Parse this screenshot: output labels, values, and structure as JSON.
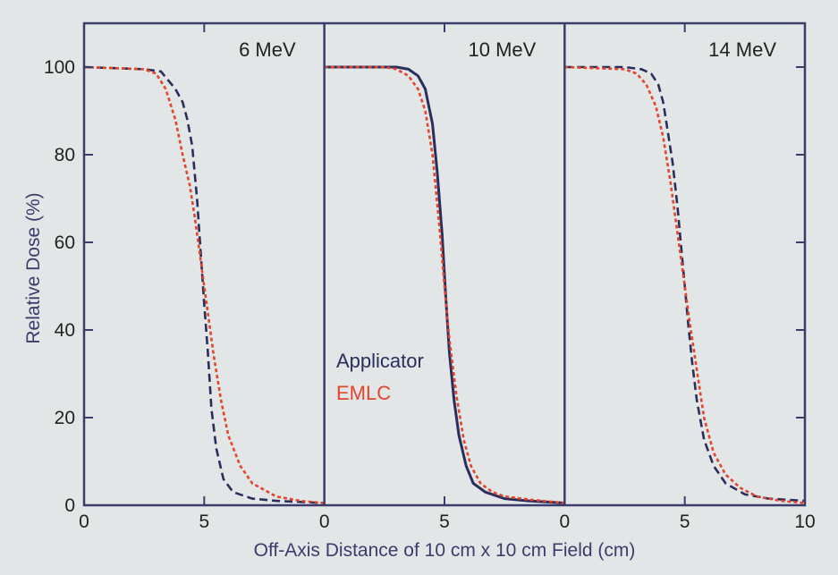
{
  "chart_data": {
    "type": "line",
    "xlabel": "Off-Axis Distance of 10 cm x 10 cm Field (cm)",
    "ylabel": "Relative Dose (%)",
    "ylim": [
      0,
      110
    ],
    "xlim": [
      0,
      10
    ],
    "yticks": [
      0,
      20,
      40,
      60,
      80,
      100
    ],
    "grid": false,
    "legend": {
      "placement": "center",
      "entries": [
        {
          "name": "Applicator",
          "color": "#2a2e5c"
        },
        {
          "name": "EMLC",
          "color": "#e2452a"
        }
      ]
    },
    "colors": {
      "axis": "#3a3d6b",
      "applicator": "#2a2e5c",
      "emlc": "#e2452a",
      "background": "#e3e6e7"
    },
    "panels": [
      {
        "title": "6 MeV",
        "xticks": [
          0,
          5
        ],
        "series": [
          {
            "name": "Applicator",
            "style": "dashed",
            "x": [
              0,
              2.5,
              3.2,
              3.5,
              3.8,
              4.1,
              4.3,
              4.5,
              4.7,
              4.85,
              5.0,
              5.15,
              5.3,
              5.5,
              5.8,
              6.2,
              7.0,
              8.0,
              10
            ],
            "y": [
              100,
              99.5,
              99,
              97,
              95,
              92,
              88,
              82,
              70,
              58,
              46,
              35,
              22,
              13,
              6,
              3,
              1.5,
              1,
              0.5
            ]
          },
          {
            "name": "EMLC",
            "style": "dotted",
            "x": [
              0,
              2.5,
              3.0,
              3.4,
              3.8,
              4.1,
              4.4,
              4.6,
              4.8,
              5.0,
              5.2,
              5.4,
              5.7,
              6.0,
              6.5,
              7.0,
              8.0,
              9.0,
              10
            ],
            "y": [
              100,
              99.5,
              98.5,
              95,
              88,
              80,
              73,
              66,
              58,
              50,
              42,
              34,
              24,
              16,
              9,
              5,
              2,
              1,
              0.5
            ]
          }
        ]
      },
      {
        "title": "10 MeV",
        "xticks": [
          0,
          5
        ],
        "series": [
          {
            "name": "Applicator",
            "style": "solid",
            "x": [
              0,
              2.5,
              3.0,
              3.5,
              3.9,
              4.2,
              4.5,
              4.7,
              4.9,
              5.05,
              5.2,
              5.4,
              5.6,
              5.9,
              6.2,
              6.7,
              7.5,
              8.5,
              10
            ],
            "y": [
              100,
              100,
              100,
              99.5,
              98,
              95,
              87,
              76,
              62,
              48,
              35,
              24,
              16,
              9,
              5,
              3,
              1.5,
              1,
              0.5
            ]
          },
          {
            "name": "EMLC",
            "style": "dotted",
            "x": [
              0,
              2.5,
              3.0,
              3.5,
              3.9,
              4.2,
              4.5,
              4.8,
              5.0,
              5.2,
              5.5,
              5.8,
              6.1,
              6.5,
              7.0,
              7.5,
              8.5,
              10
            ],
            "y": [
              100,
              100,
              99.5,
              98,
              95,
              90,
              80,
              63,
              50,
              38,
              25,
              15,
              9,
              5,
              3,
              2,
              1.3,
              0.5
            ]
          }
        ]
      },
      {
        "title": "14 MeV",
        "xticks": [
          0,
          5,
          10
        ],
        "series": [
          {
            "name": "Applicator",
            "style": "dashed",
            "x": [
              0,
              2.5,
              3.2,
              3.6,
              3.9,
              4.1,
              4.3,
              4.5,
              4.7,
              4.85,
              5.0,
              5.15,
              5.3,
              5.5,
              5.8,
              6.2,
              6.7,
              7.5,
              8.5,
              10
            ],
            "y": [
              100,
              100,
              99.5,
              98.5,
              96,
              92,
              85,
              78,
              68,
              59,
              50,
              41,
              33,
              24,
              15,
              9,
              5,
              2.5,
              1.5,
              1
            ]
          },
          {
            "name": "EMLC",
            "style": "dotted",
            "x": [
              0,
              2.5,
              3.0,
              3.4,
              3.8,
              4.1,
              4.4,
              4.7,
              4.85,
              5.0,
              5.2,
              5.5,
              5.8,
              6.2,
              6.7,
              7.3,
              8.0,
              9.0,
              10
            ],
            "y": [
              100,
              99.5,
              98.5,
              96,
              91,
              84,
              74,
              62,
              56,
              50,
              42,
              31,
              20,
              12,
              7,
              4,
              2,
              1,
              0.5
            ]
          }
        ]
      }
    ]
  }
}
